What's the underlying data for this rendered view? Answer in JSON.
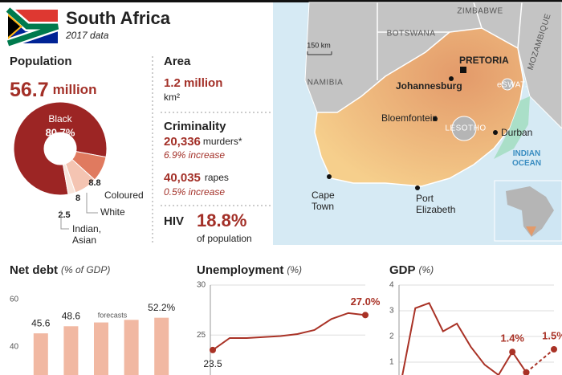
{
  "header": {
    "title": "South Africa",
    "subtitle": "2017 data"
  },
  "population": {
    "label": "Population",
    "value": "56.7",
    "unit": "million"
  },
  "area": {
    "label": "Area",
    "value": "1.2 million",
    "unit": "km²"
  },
  "criminality": {
    "label": "Criminality",
    "murders": {
      "value": "20,336",
      "label": "murders*",
      "change": "6.9% increase"
    },
    "rapes": {
      "value": "40,035",
      "label": "rapes",
      "change": "0.5% increase"
    }
  },
  "hiv": {
    "label": "HIV",
    "value": "18.8%",
    "note": "of population"
  },
  "map": {
    "countries": [
      "ZIMBABWE",
      "BOTSWANA",
      "NAMIBIA",
      "MOZAMBIQUE",
      "eSWAT.",
      "LESOTHO"
    ],
    "cities": [
      "PRETORIA",
      "Johannesburg",
      "Bloemfontein",
      "Durban",
      "Cape Town",
      "Port Elizabeth"
    ],
    "ocean": "INDIAN OCEAN",
    "scale": "150 km"
  },
  "chart_data": [
    {
      "type": "pie",
      "categories": [
        "Black",
        "Coloured",
        "White",
        "Indian, Asian"
      ],
      "values": [
        80.7,
        8.8,
        8,
        2.5
      ],
      "value_labels": [
        "80.7%",
        null,
        null,
        null
      ],
      "colors": [
        "#9c2524",
        "#e07a5f",
        "#f4c4b2",
        "#f8e4da"
      ]
    },
    {
      "type": "bar",
      "title": "Net debt",
      "unit": "(% of GDP)",
      "categories": [
        null,
        null,
        null,
        null,
        null
      ],
      "values": [
        45.6,
        48.6,
        50.2,
        51.3,
        52.2
      ],
      "value_labels": [
        "45.6",
        "48.6",
        null,
        null,
        "52.2%"
      ],
      "color": "#f1b8a2",
      "ylim": [
        28,
        66
      ],
      "yticks": [
        40,
        60
      ],
      "annotation": "forecasts"
    },
    {
      "type": "line",
      "title": "Unemployment",
      "unit": "(%)",
      "categories": [
        null,
        null,
        null,
        null,
        null,
        null,
        null,
        null,
        null,
        null
      ],
      "values": [
        23.5,
        24.7,
        24.7,
        24.8,
        24.9,
        25.1,
        25.5,
        26.6,
        27.2,
        27.0
      ],
      "value_labels": [
        "23.5",
        null,
        null,
        null,
        null,
        null,
        null,
        null,
        null,
        "27.0%"
      ],
      "color": "#a93226",
      "ylim": [
        21,
        30
      ],
      "yticks": [
        25,
        30
      ]
    },
    {
      "type": "line",
      "title": "GDP",
      "unit": "(%)",
      "categories": [
        null,
        null,
        null,
        null,
        null,
        null,
        null,
        null,
        null,
        null,
        null,
        null
      ],
      "series": [
        {
          "color": "#a93226",
          "dash": false,
          "values": [
            0.3,
            3.1,
            3.3,
            2.2,
            2.5,
            1.6,
            0.9,
            0.5,
            1.4,
            0.6,
            null,
            null
          ],
          "value_labels": [
            null,
            null,
            null,
            null,
            null,
            null,
            null,
            null,
            "1.4%",
            null,
            null,
            null
          ]
        },
        {
          "color": "#a93226",
          "dash": true,
          "values": [
            null,
            null,
            null,
            null,
            null,
            null,
            null,
            null,
            null,
            0.6,
            1.05,
            1.5
          ],
          "value_labels": [
            null,
            null,
            null,
            null,
            null,
            null,
            null,
            null,
            null,
            null,
            null,
            "1.5%"
          ]
        }
      ],
      "ylim": [
        0.5,
        4
      ],
      "yticks": [
        1,
        2,
        3,
        4
      ]
    }
  ]
}
